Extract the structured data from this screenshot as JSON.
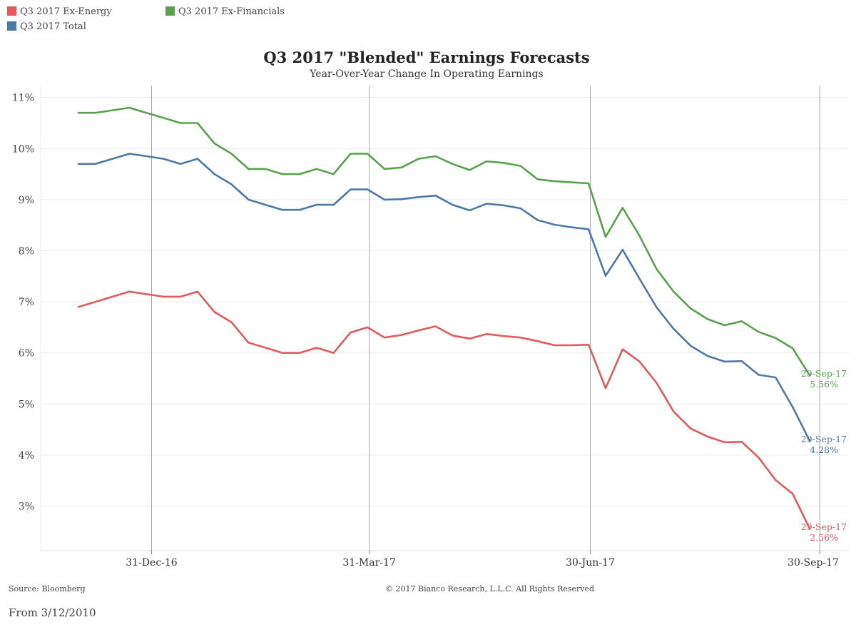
{
  "legend": [
    {
      "label": "Q3 2017 Ex-Energy",
      "color": "#e05a5f"
    },
    {
      "label": "Q3 2017 Ex-Financials",
      "color": "#59a14f"
    },
    {
      "label": "Q3 2017 Total",
      "color": "#4e79a7"
    }
  ],
  "chart_data": {
    "type": "line",
    "title": "Q3 2017 \"Blended\" Earnings Forecasts",
    "subtitle": "Year-Over-Year Change In Operating Earnings",
    "xlabel": "",
    "ylabel": "",
    "ylim": [
      2.1,
      11.4
    ],
    "y_ticks": [
      3,
      4,
      5,
      6,
      7,
      8,
      9,
      10,
      11
    ],
    "y_tick_labels": [
      "3%",
      "4%",
      "5%",
      "6%",
      "7%",
      "8%",
      "9%",
      "10%",
      "11%"
    ],
    "x_tick_labels": [
      "31-Dec-16",
      "31-Mar-17",
      "30-Jun-17",
      "30-Sep-17"
    ],
    "grid": "horizontal",
    "legend_position": "top-left",
    "series": [
      {
        "name": "Q3 2017 Ex-Energy",
        "color": "#e05a5f",
        "values": [
          6.9,
          7.0,
          7.1,
          7.2,
          7.15,
          7.1,
          7.1,
          7.2,
          6.8,
          6.6,
          6.2,
          6.1,
          6.0,
          6.0,
          6.1,
          6.0,
          6.4,
          6.5,
          6.3,
          6.35,
          6.44,
          6.52,
          6.34,
          6.28,
          6.37,
          6.33,
          6.3,
          6.23,
          6.15,
          6.15,
          6.16,
          5.31,
          6.07,
          5.83,
          5.41,
          4.85,
          4.52,
          4.36,
          4.25,
          4.26,
          3.95,
          3.51,
          3.24,
          2.56
        ],
        "end_label": "29-Sep-17",
        "end_value_label": "2.56%"
      },
      {
        "name": "Q3 2017 Ex-Financials",
        "color": "#59a14f",
        "values": [
          10.7,
          10.7,
          10.75,
          10.8,
          10.7,
          10.6,
          10.5,
          10.5,
          10.1,
          9.9,
          9.6,
          9.6,
          9.5,
          9.5,
          9.6,
          9.5,
          9.9,
          9.9,
          9.6,
          9.63,
          9.8,
          9.85,
          9.7,
          9.58,
          9.75,
          9.72,
          9.66,
          9.4,
          9.36,
          9.34,
          9.32,
          8.27,
          8.84,
          8.29,
          7.64,
          7.2,
          6.87,
          6.66,
          6.54,
          6.62,
          6.41,
          6.29,
          6.09,
          5.56
        ],
        "end_label": "29-Sep-17",
        "end_value_label": "5.56%"
      },
      {
        "name": "Q3 2017 Total",
        "color": "#4e79a7",
        "values": [
          9.7,
          9.7,
          9.8,
          9.9,
          9.85,
          9.8,
          9.7,
          9.8,
          9.5,
          9.3,
          9.0,
          8.9,
          8.8,
          8.8,
          8.9,
          8.9,
          9.2,
          9.2,
          9.0,
          9.01,
          9.05,
          9.08,
          8.9,
          8.79,
          8.92,
          8.89,
          8.83,
          8.6,
          8.51,
          8.46,
          8.42,
          7.51,
          8.02,
          7.45,
          6.89,
          6.47,
          6.14,
          5.94,
          5.83,
          5.84,
          5.57,
          5.52,
          4.94,
          4.28
        ],
        "end_label": "29-Sep-17",
        "end_value_label": "4.28%"
      }
    ]
  },
  "footer": {
    "source": "Source: Bloomberg",
    "copyright": "© 2017 Bianco Research, L.L.C. All Rights Reserved",
    "from": "From 3/12/2010"
  }
}
